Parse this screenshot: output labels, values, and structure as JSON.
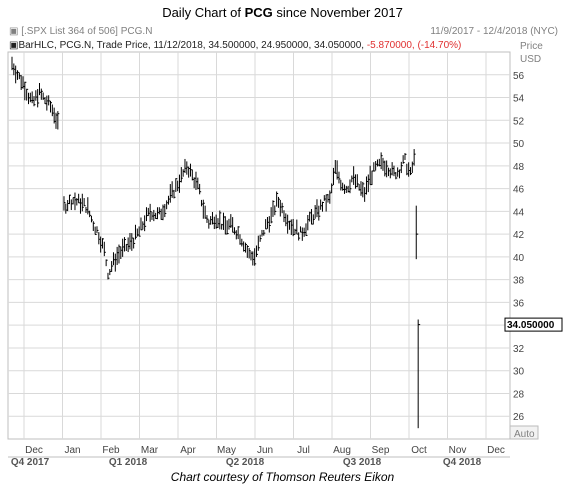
{
  "title": {
    "prefix": "Daily Chart of ",
    "ticker": "PCG",
    "suffix": " since November 2017"
  },
  "header": {
    "line1_left": "[.SPX List 364 of 506] PCG.N",
    "line1_right": "11/9/2017 - 12/4/2018 (NYC)",
    "line2_study": "BarHLC, PCG.N, Trade Price, 11/12/2018, 34.500000, 24.950000, 34.050000,",
    "line2_change": "-5.870000, (-14.70%)",
    "price_label": "Price",
    "currency_label": "USD",
    "auto_label": "Auto"
  },
  "caption": "Chart courtesy of Thomson Reuters Eikon",
  "colors": {
    "bars": "#000000",
    "grid": "#d9d9d9",
    "change_text": "#e03030",
    "header_text": "#808080",
    "axis_text": "#444444",
    "last_price_bg": "#ffffff"
  },
  "chart_data": {
    "type": "bar",
    "subtype": "ohlc-hlc",
    "yaxis_position": "right",
    "ylim": [
      24,
      58
    ],
    "yticks": [
      26,
      28,
      30,
      32,
      34,
      36,
      38,
      40,
      42,
      44,
      46,
      48,
      50,
      52,
      54,
      56
    ],
    "grid": true,
    "last_price_label": "34.050000",
    "last_price": 34.05,
    "x_month_labels": [
      "Dec",
      "Jan",
      "Feb",
      "Mar",
      "Apr",
      "May",
      "Jun",
      "Jul",
      "Aug",
      "Sep",
      "Oct",
      "Nov",
      "Dec"
    ],
    "x_quarter_labels": [
      "Q4 2017",
      "Q1 2018",
      "Q2 2018",
      "Q3 2018",
      "Q4 2018"
    ],
    "series": [
      {
        "segments": [
          {
            "from_month": 0.0,
            "to_month": 1.23,
            "points": [
              [
                0.0,
                57.0
              ],
              [
                0.15,
                56.0
              ],
              [
                0.3,
                55.2
              ],
              [
                0.45,
                54.0
              ],
              [
                0.55,
                53.5
              ],
              [
                0.7,
                54.5
              ],
              [
                0.85,
                53.8
              ],
              [
                1.0,
                53.2
              ],
              [
                1.1,
                52.6
              ],
              [
                1.23,
                51.2
              ]
            ]
          },
          {
            "from_month": 1.35,
            "to_month": 10.45,
            "points": [
              [
                1.35,
                44.5
              ],
              [
                1.55,
                45.0
              ],
              [
                1.75,
                44.8
              ],
              [
                1.95,
                44.4
              ],
              [
                2.1,
                43.0
              ],
              [
                2.25,
                42.0
              ],
              [
                2.4,
                40.5
              ],
              [
                2.5,
                38.5
              ],
              [
                2.6,
                39.3
              ],
              [
                2.75,
                40.2
              ],
              [
                2.95,
                40.8
              ],
              [
                3.1,
                41.3
              ],
              [
                3.3,
                42.2
              ],
              [
                3.45,
                43.2
              ],
              [
                3.6,
                44.0
              ],
              [
                3.8,
                43.6
              ],
              [
                4.0,
                44.6
              ],
              [
                4.2,
                45.8
              ],
              [
                4.4,
                47.0
              ],
              [
                4.55,
                48.0
              ],
              [
                4.7,
                47.0
              ],
              [
                4.85,
                46.0
              ],
              [
                4.95,
                44.5
              ],
              [
                5.1,
                43.0
              ],
              [
                5.3,
                43.5
              ],
              [
                5.5,
                42.7
              ],
              [
                5.7,
                42.8
              ],
              [
                5.9,
                42.0
              ],
              [
                6.05,
                41.0
              ],
              [
                6.15,
                40.2
              ],
              [
                6.3,
                40.0
              ],
              [
                6.45,
                41.5
              ],
              [
                6.6,
                42.8
              ],
              [
                6.75,
                43.6
              ],
              [
                6.9,
                45.0
              ],
              [
                7.05,
                44.0
              ],
              [
                7.2,
                43.0
              ],
              [
                7.35,
                42.5
              ],
              [
                7.5,
                42.0
              ],
              [
                7.65,
                42.8
              ],
              [
                7.8,
                43.5
              ],
              [
                7.95,
                44.0
              ],
              [
                8.1,
                44.8
              ],
              [
                8.25,
                45.0
              ],
              [
                8.4,
                47.8
              ],
              [
                8.55,
                46.5
              ],
              [
                8.7,
                46.0
              ],
              [
                8.85,
                47.0
              ],
              [
                9.0,
                46.2
              ],
              [
                9.15,
                45.5
              ],
              [
                9.3,
                47.0
              ],
              [
                9.45,
                47.8
              ],
              [
                9.6,
                48.2
              ],
              [
                9.75,
                48.0
              ],
              [
                9.9,
                47.3
              ],
              [
                10.05,
                47.6
              ],
              [
                10.2,
                48.5
              ],
              [
                10.35,
                47.2
              ],
              [
                10.45,
                48.6
              ]
            ]
          },
          {
            "from_month": 10.5,
            "to_month": 10.5,
            "points": [
              [
                10.5,
                42.0
              ]
            ]
          },
          {
            "from_month": 10.55,
            "to_month": 10.55,
            "points": [
              [
                10.55,
                34.05
              ]
            ]
          }
        ]
      }
    ]
  }
}
